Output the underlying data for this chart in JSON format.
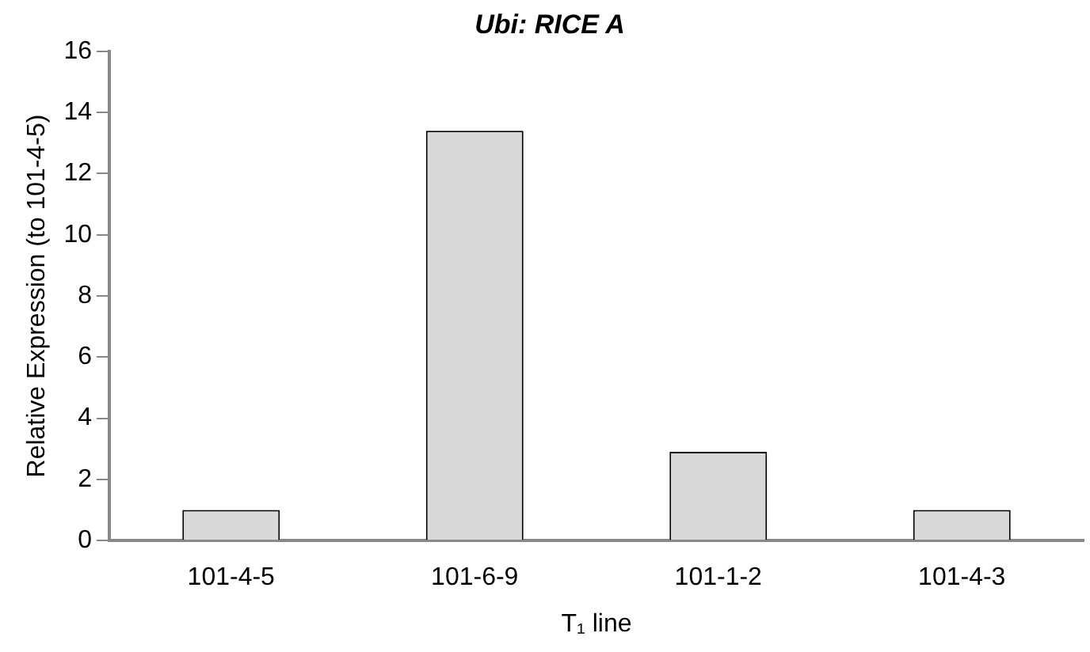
{
  "chart_data": {
    "type": "bar",
    "title": "Ubi: RICE A",
    "xlabel": "T₁ line",
    "ylabel": "Relative Expression (to 101-4-5)",
    "categories": [
      "101-4-5",
      "101-6-9",
      "101-1-2",
      "101-4-3"
    ],
    "values": [
      1.0,
      13.4,
      2.9,
      1.0
    ],
    "color": "#d9d9d9",
    "ylim": [
      0,
      16
    ],
    "yticks": [
      0,
      2,
      4,
      6,
      8,
      10,
      12,
      14,
      16
    ],
    "grid": false,
    "legend": false
  }
}
